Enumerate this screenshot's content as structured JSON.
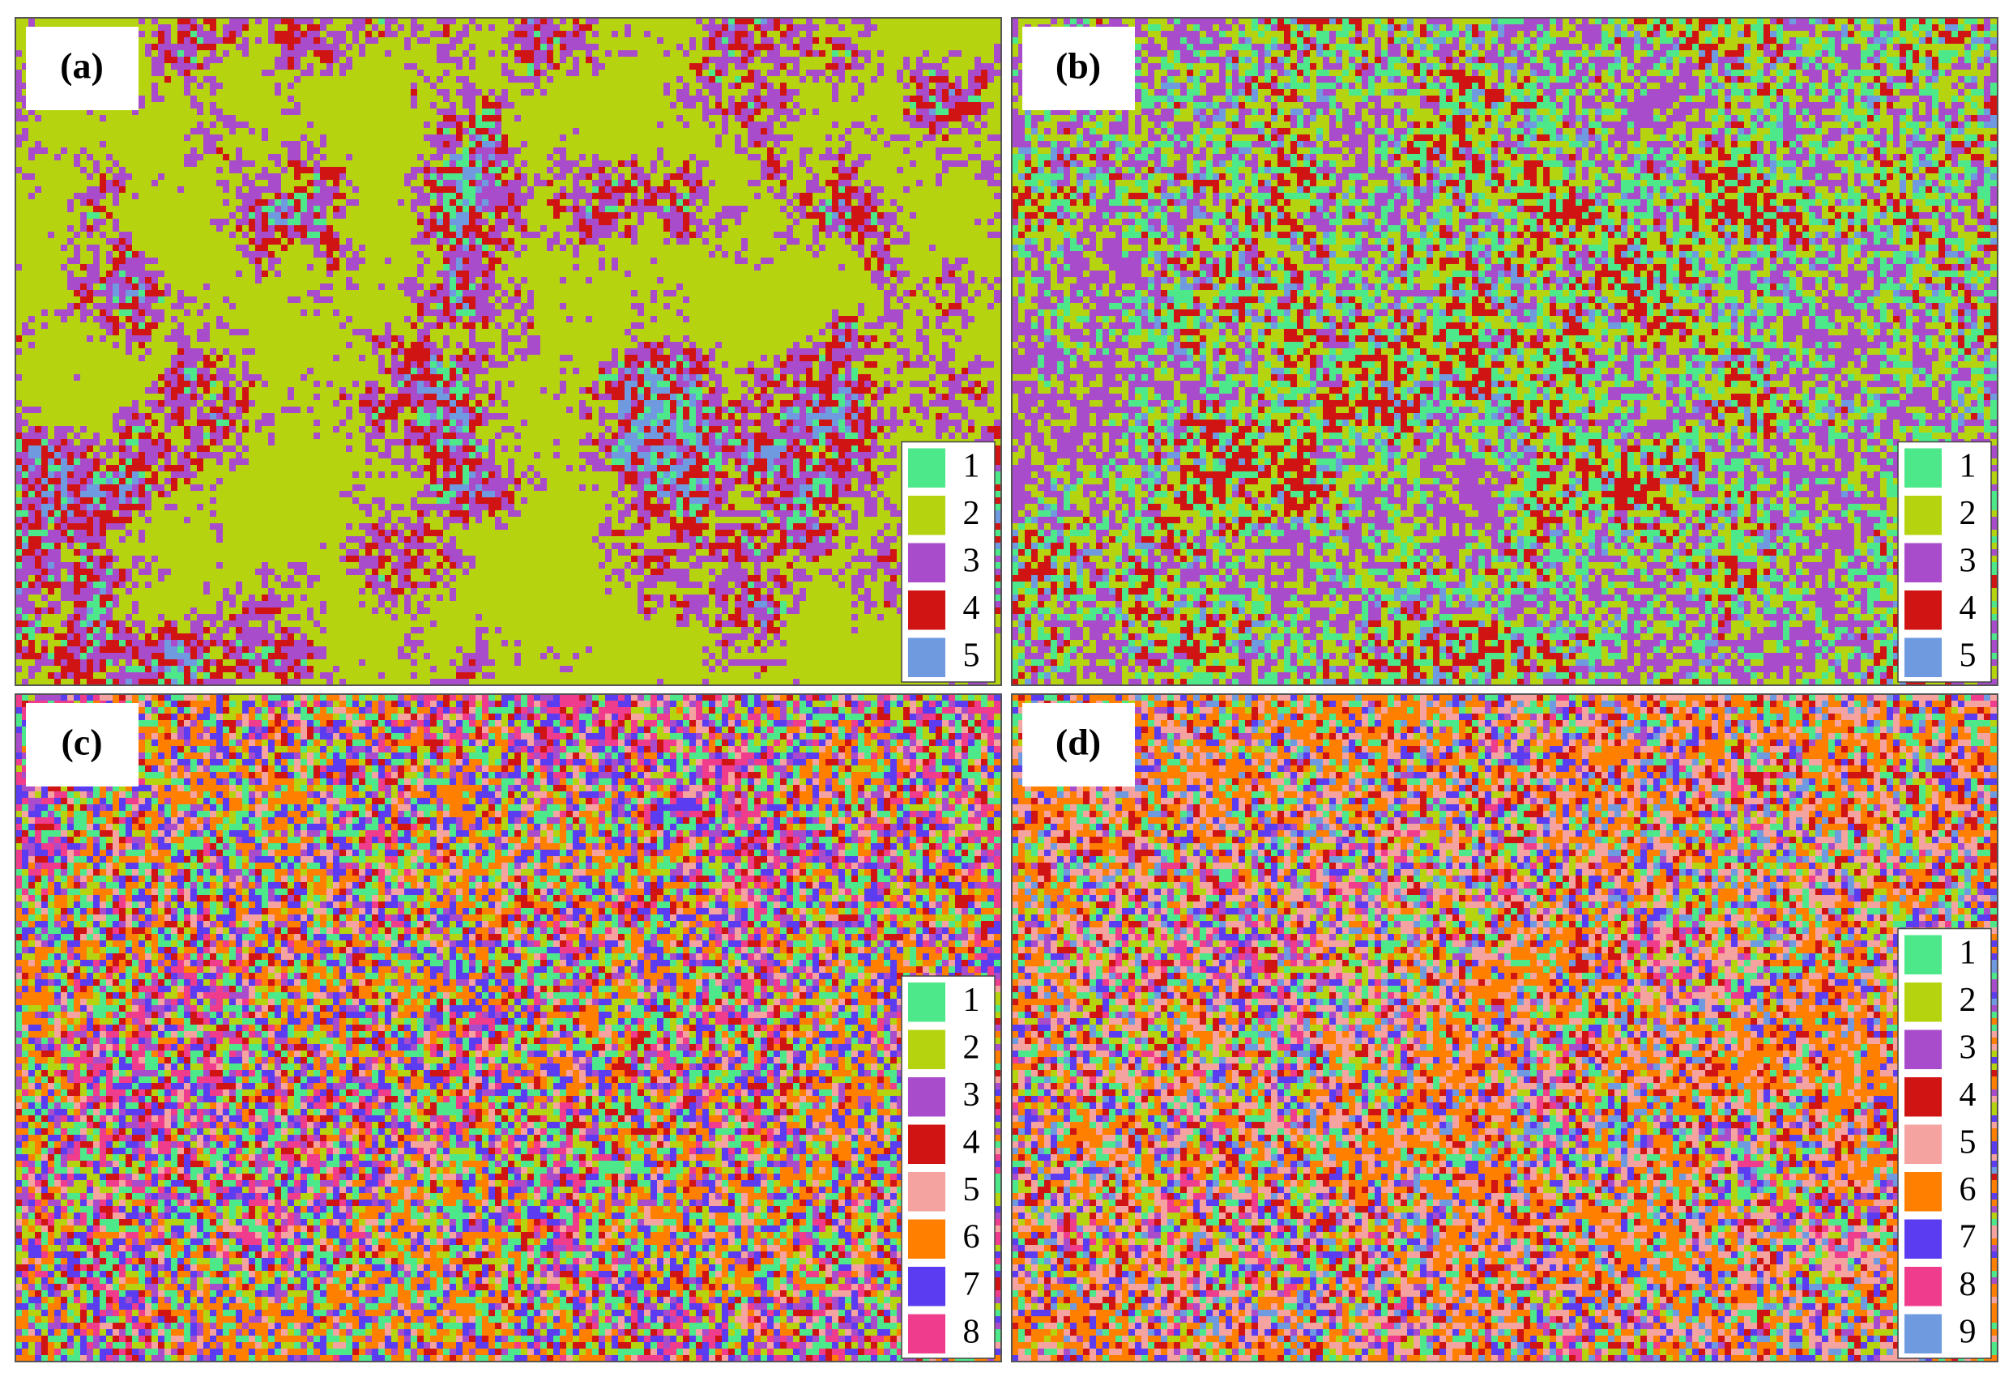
{
  "panels": [
    {
      "label": "(a)",
      "legend": [
        {
          "label": "1",
          "color": "#4de88a"
        },
        {
          "label": "2",
          "color": "#b5d40f"
        },
        {
          "label": "3",
          "color": "#a84ccb"
        },
        {
          "label": "4",
          "color": "#d01414"
        },
        {
          "label": "5",
          "color": "#6f9ae0"
        }
      ]
    },
    {
      "label": "(b)",
      "legend": [
        {
          "label": "1",
          "color": "#4de88a"
        },
        {
          "label": "2",
          "color": "#b5d40f"
        },
        {
          "label": "3",
          "color": "#a84ccb"
        },
        {
          "label": "4",
          "color": "#d01414"
        },
        {
          "label": "5",
          "color": "#6f9ae0"
        }
      ]
    },
    {
      "label": "(c)",
      "legend": [
        {
          "label": "1",
          "color": "#4de88a"
        },
        {
          "label": "2",
          "color": "#b5d40f"
        },
        {
          "label": "3",
          "color": "#a84ccb"
        },
        {
          "label": "4",
          "color": "#d01414"
        },
        {
          "label": "5",
          "color": "#f5a3a0"
        },
        {
          "label": "6",
          "color": "#ff7f00"
        },
        {
          "label": "7",
          "color": "#5b3cf0"
        },
        {
          "label": "8",
          "color": "#f03c8c"
        }
      ]
    },
    {
      "label": "(d)",
      "legend": [
        {
          "label": "1",
          "color": "#4de88a"
        },
        {
          "label": "2",
          "color": "#b5d40f"
        },
        {
          "label": "3",
          "color": "#a84ccb"
        },
        {
          "label": "4",
          "color": "#d01414"
        },
        {
          "label": "5",
          "color": "#f5a3a0"
        },
        {
          "label": "6",
          "color": "#ff7f00"
        },
        {
          "label": "7",
          "color": "#5b3cf0"
        },
        {
          "label": "8",
          "color": "#f03c8c"
        },
        {
          "label": "9",
          "color": "#6f9ae0"
        }
      ]
    }
  ]
}
